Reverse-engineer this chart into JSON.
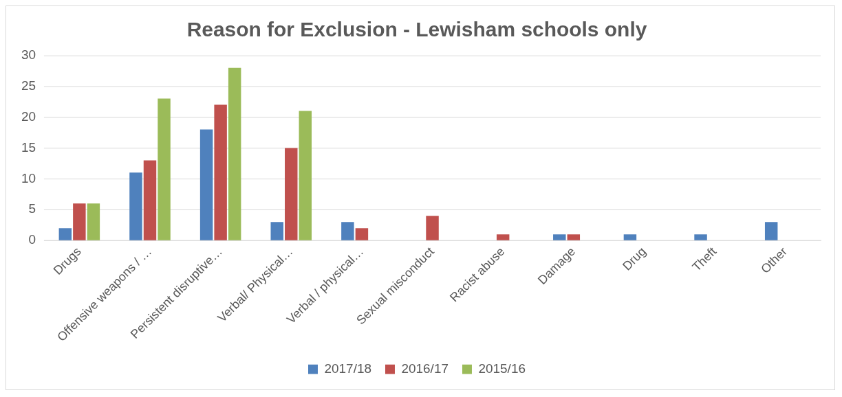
{
  "chart_data": {
    "type": "bar",
    "title": "Reason for Exclusion - Lewisham schools only",
    "categories": [
      "Drugs",
      "Offensive weapons / …",
      "Persistent disruptive…",
      "Verbal/ Physical…",
      "Verbal / physical…",
      "Sexual misconduct",
      "Racist abuse",
      "Damage",
      "Drug",
      "Theft",
      "Other"
    ],
    "series": [
      {
        "name": "2017/18",
        "color": "#4f81bd",
        "values": [
          2,
          11,
          18,
          3,
          3,
          null,
          null,
          1,
          1,
          1,
          3
        ]
      },
      {
        "name": "2016/17",
        "color": "#c0504d",
        "values": [
          6,
          13,
          22,
          15,
          2,
          4,
          1,
          1,
          null,
          null,
          null
        ]
      },
      {
        "name": "2015/16",
        "color": "#9bbb59",
        "values": [
          6,
          23,
          28,
          21,
          null,
          null,
          null,
          null,
          null,
          null,
          null
        ]
      }
    ],
    "ylim": [
      0,
      30
    ],
    "yticks": [
      0,
      5,
      10,
      15,
      20,
      25,
      30
    ],
    "grid": "y",
    "legend": "bottom"
  }
}
